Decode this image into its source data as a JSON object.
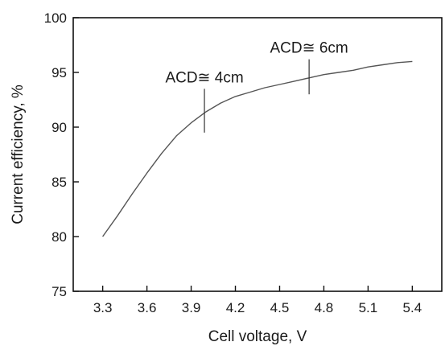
{
  "chart_data": {
    "type": "line",
    "xlabel": "Cell voltage, V",
    "ylabel": "Current efficiency, %",
    "xlim": [
      3.1,
      5.6
    ],
    "ylim": [
      75,
      100
    ],
    "x_ticks": [
      3.3,
      3.6,
      3.9,
      4.2,
      4.5,
      4.8,
      5.1,
      5.4
    ],
    "x_tick_labels": [
      "3.3",
      "3.6",
      "3.9",
      "4.2",
      "4.5",
      "4.8",
      "5.1",
      "5.4"
    ],
    "y_ticks": [
      75,
      80,
      85,
      90,
      95,
      100
    ],
    "y_tick_labels": [
      "75",
      "80",
      "85",
      "90",
      "95",
      "100"
    ],
    "grid": false,
    "series": [
      {
        "x": [
          3.3,
          3.4,
          3.5,
          3.6,
          3.7,
          3.8,
          3.9,
          4.0,
          4.1,
          4.2,
          4.3,
          4.4,
          4.5,
          4.6,
          4.7,
          4.8,
          4.9,
          5.0,
          5.1,
          5.2,
          5.3,
          5.4
        ],
        "y": [
          80.0,
          81.9,
          83.9,
          85.8,
          87.6,
          89.2,
          90.4,
          91.4,
          92.2,
          92.8,
          93.2,
          93.6,
          93.9,
          94.2,
          94.5,
          94.8,
          95.0,
          95.2,
          95.5,
          95.7,
          95.9,
          96.0
        ],
        "color": "#555555"
      }
    ],
    "annotations": [
      {
        "text": "ACD≅ 4cm",
        "x": 3.99,
        "y_low": 89.5,
        "y_high": 93.5
      },
      {
        "text": "ACD≅ 6cm",
        "x": 4.7,
        "y_low": 93.0,
        "y_high": 96.2
      }
    ]
  }
}
